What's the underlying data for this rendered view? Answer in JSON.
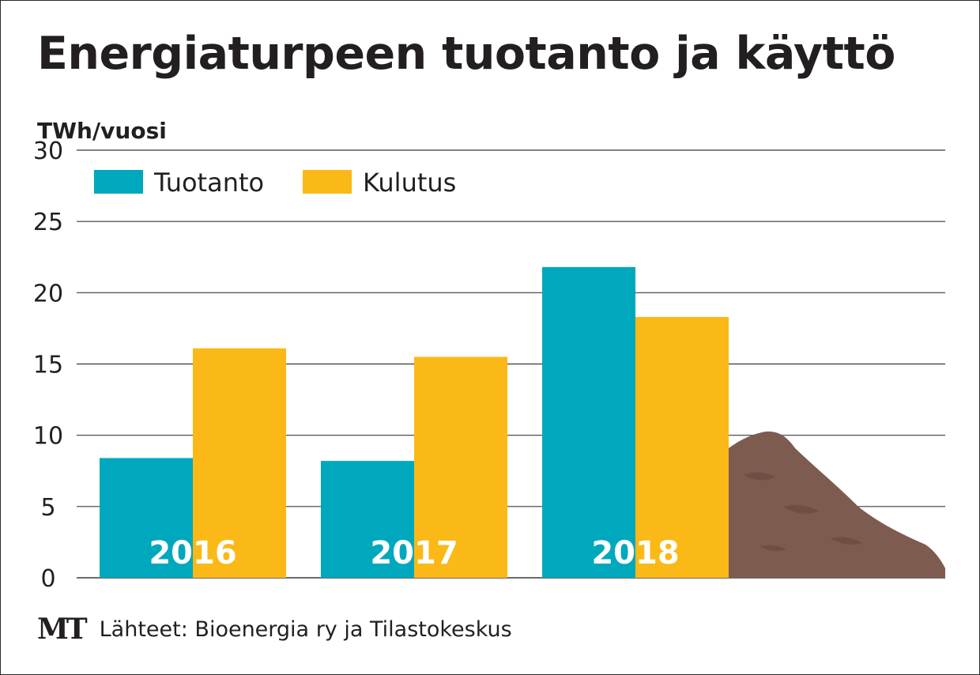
{
  "title": "Energiaturpeen tuotanto ja käyttö",
  "footer": {
    "logo": "MT",
    "source": "Lähteet: Bioenergia ry ja Tilastokeskus"
  },
  "chart_data": {
    "type": "bar",
    "title": "Energiaturpeen tuotanto ja käyttö",
    "ylabel": "TWh/vuosi",
    "xlabel": "",
    "categories": [
      "2016",
      "2017",
      "2018"
    ],
    "series": [
      {
        "name": "Tuotanto",
        "values": [
          8.4,
          8.2,
          21.8
        ],
        "color": "#00a8be"
      },
      {
        "name": "Kulutus",
        "values": [
          16.1,
          15.5,
          18.3
        ],
        "color": "#fbb917"
      }
    ],
    "ylim": [
      0,
      30
    ],
    "yticks": [
      0,
      5,
      10,
      15,
      20,
      25,
      30
    ],
    "grid": true,
    "legend": "top-left",
    "category_label_color": "#ffffff",
    "grid_color": "#3a3a3a",
    "peat_color": "#7d5c4f"
  }
}
